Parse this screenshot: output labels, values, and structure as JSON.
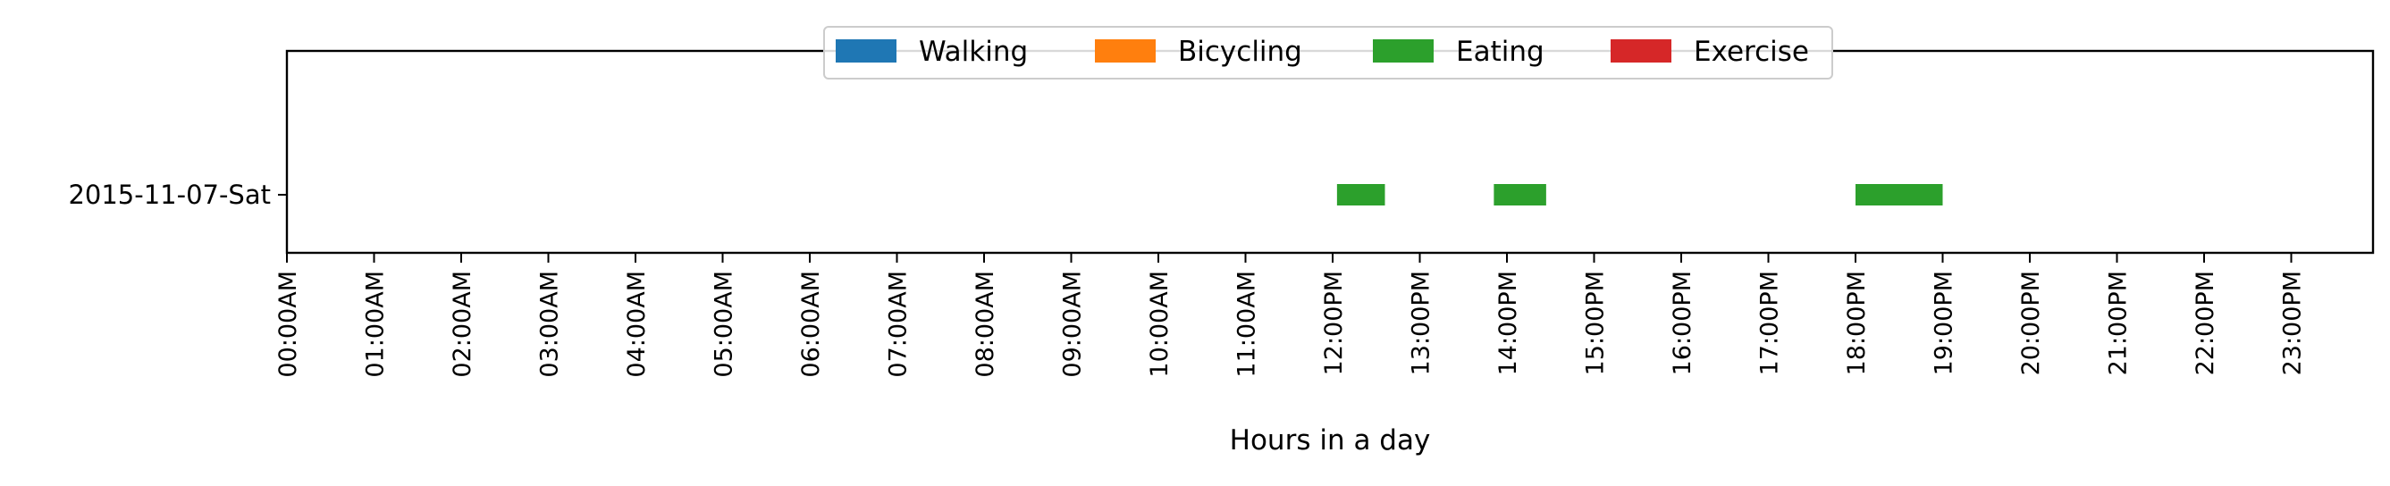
{
  "chart_data": {
    "type": "broken_barh",
    "title": "",
    "xlabel": "Hours in a day",
    "ylabel": "",
    "xlim": [
      0,
      24
    ],
    "categories": [
      "2015-11-07-Sat"
    ],
    "x_ticks": [
      {
        "value": 0,
        "label": "00:00AM"
      },
      {
        "value": 1,
        "label": "01:00AM"
      },
      {
        "value": 2,
        "label": "02:00AM"
      },
      {
        "value": 3,
        "label": "03:00AM"
      },
      {
        "value": 4,
        "label": "04:00AM"
      },
      {
        "value": 5,
        "label": "05:00AM"
      },
      {
        "value": 6,
        "label": "06:00AM"
      },
      {
        "value": 7,
        "label": "07:00AM"
      },
      {
        "value": 8,
        "label": "08:00AM"
      },
      {
        "value": 9,
        "label": "09:00AM"
      },
      {
        "value": 10,
        "label": "10:00AM"
      },
      {
        "value": 11,
        "label": "11:00AM"
      },
      {
        "value": 12,
        "label": "12:00PM"
      },
      {
        "value": 13,
        "label": "13:00PM"
      },
      {
        "value": 14,
        "label": "14:00PM"
      },
      {
        "value": 15,
        "label": "15:00PM"
      },
      {
        "value": 16,
        "label": "16:00PM"
      },
      {
        "value": 17,
        "label": "17:00PM"
      },
      {
        "value": 18,
        "label": "18:00PM"
      },
      {
        "value": 19,
        "label": "19:00PM"
      },
      {
        "value": 20,
        "label": "20:00PM"
      },
      {
        "value": 21,
        "label": "21:00PM"
      },
      {
        "value": 22,
        "label": "22:00PM"
      },
      {
        "value": 23,
        "label": "23:00PM"
      }
    ],
    "legend": {
      "location": "top-center",
      "entries": [
        {
          "name": "Walking",
          "color": "#1f77b4"
        },
        {
          "name": "Bicycling",
          "color": "#ff7f0e"
        },
        {
          "name": "Eating",
          "color": "#2ca02c"
        },
        {
          "name": "Exercise",
          "color": "#d62728"
        }
      ]
    },
    "series": [
      {
        "name": "Walking",
        "color": "#1f77b4",
        "segments": []
      },
      {
        "name": "Bicycling",
        "color": "#ff7f0e",
        "segments": []
      },
      {
        "name": "Eating",
        "color": "#2ca02c",
        "segments": [
          {
            "day": "2015-11-07-Sat",
            "start": 12.05,
            "end": 12.6
          },
          {
            "day": "2015-11-07-Sat",
            "start": 13.85,
            "end": 14.45
          },
          {
            "day": "2015-11-07-Sat",
            "start": 18.0,
            "end": 19.0
          }
        ]
      },
      {
        "name": "Exercise",
        "color": "#d62728",
        "segments": []
      }
    ]
  }
}
